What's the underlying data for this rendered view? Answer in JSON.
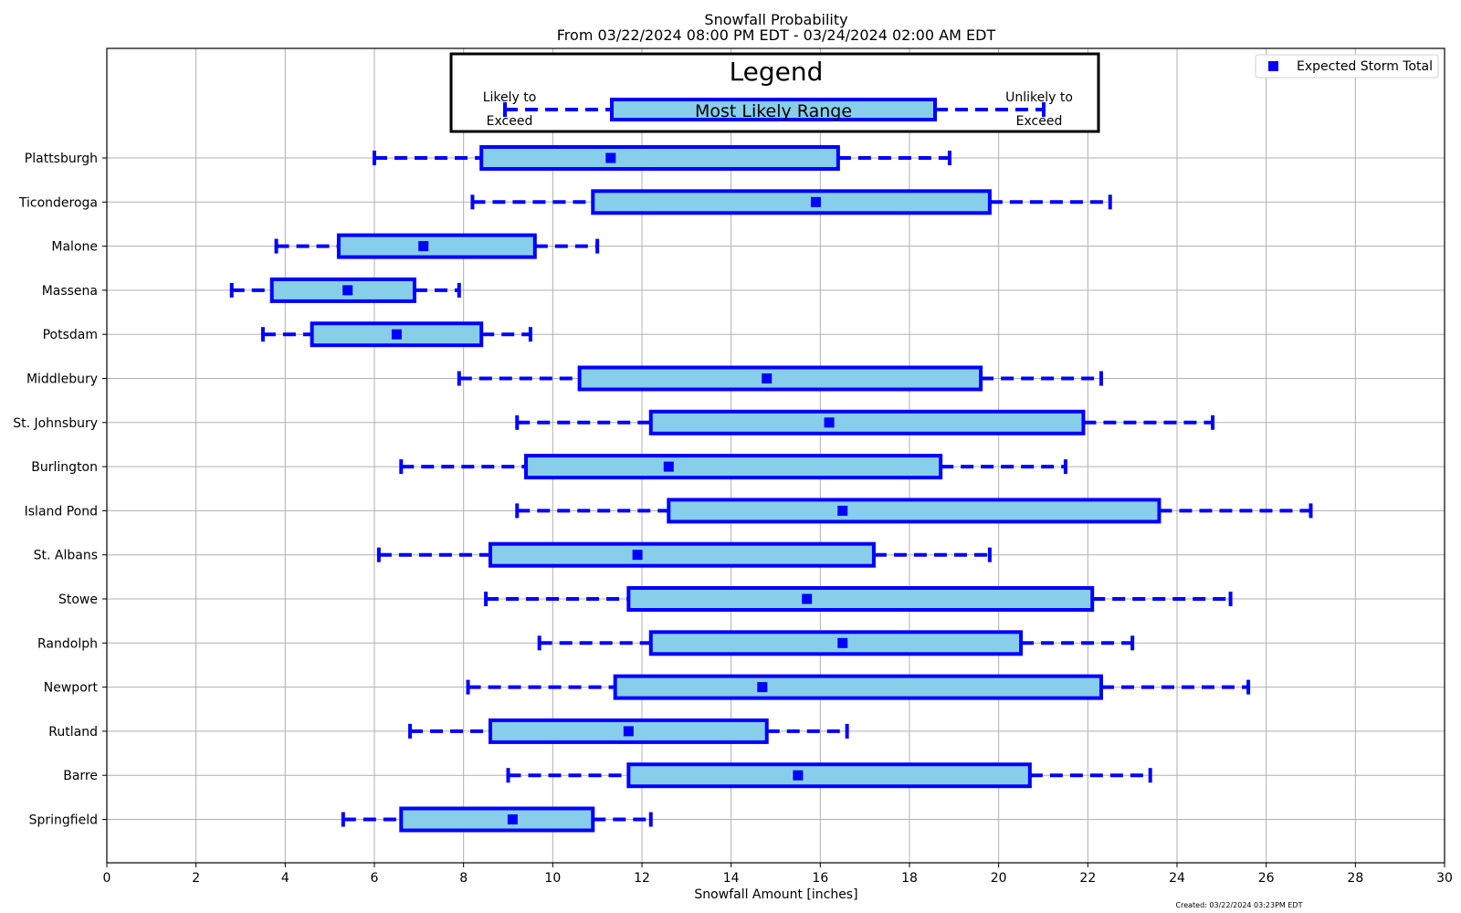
{
  "chart_data": {
    "type": "box",
    "title": "Snowfall Probability",
    "subtitle": "From 03/22/2024 08:00 PM EDT - 03/24/2024 02:00 AM EDT",
    "xlabel": "Snowfall Amount [inches]",
    "xlim": [
      0,
      30
    ],
    "xticks": [
      "0",
      "2",
      "4",
      "6",
      "8",
      "10",
      "12",
      "14",
      "16",
      "18",
      "20",
      "22",
      "24",
      "26",
      "28",
      "30"
    ],
    "grid": true,
    "legend": {
      "position": "top-right",
      "label": "Expected Storm Total"
    },
    "key_box": {
      "title": "Legend",
      "left_label_1": "Likely to",
      "left_label_2": "Exceed",
      "center_label": "Most Likely Range",
      "right_label_1": "Unlikely to",
      "right_label_2": "Exceed"
    },
    "footer": "Created: 03/22/2024 03:23PM EDT",
    "colors": {
      "box_fill": "#87ceeb",
      "stroke": "#0000ff",
      "grid": "#b0b0b0"
    },
    "sites": [
      {
        "name": "Plattsburgh",
        "low": 6.0,
        "q1": 8.4,
        "expected": 11.3,
        "q3": 16.4,
        "high": 18.9
      },
      {
        "name": "Ticonderoga",
        "low": 8.2,
        "q1": 10.9,
        "expected": 15.9,
        "q3": 19.8,
        "high": 22.5
      },
      {
        "name": "Malone",
        "low": 3.8,
        "q1": 5.2,
        "expected": 7.1,
        "q3": 9.6,
        "high": 11.0
      },
      {
        "name": "Massena",
        "low": 2.8,
        "q1": 3.7,
        "expected": 5.4,
        "q3": 6.9,
        "high": 7.9
      },
      {
        "name": "Potsdam",
        "low": 3.5,
        "q1": 4.6,
        "expected": 6.5,
        "q3": 8.4,
        "high": 9.5
      },
      {
        "name": "Middlebury",
        "low": 7.9,
        "q1": 10.6,
        "expected": 14.8,
        "q3": 19.6,
        "high": 22.3
      },
      {
        "name": "St. Johnsbury",
        "low": 9.2,
        "q1": 12.2,
        "expected": 16.2,
        "q3": 21.9,
        "high": 24.8
      },
      {
        "name": "Burlington",
        "low": 6.6,
        "q1": 9.4,
        "expected": 12.6,
        "q3": 18.7,
        "high": 21.5
      },
      {
        "name": "Island Pond",
        "low": 9.2,
        "q1": 12.6,
        "expected": 16.5,
        "q3": 23.6,
        "high": 27.0
      },
      {
        "name": "St. Albans",
        "low": 6.1,
        "q1": 8.6,
        "expected": 11.9,
        "q3": 17.2,
        "high": 19.8
      },
      {
        "name": "Stowe",
        "low": 8.5,
        "q1": 11.7,
        "expected": 15.7,
        "q3": 22.1,
        "high": 25.2
      },
      {
        "name": "Randolph",
        "low": 9.7,
        "q1": 12.2,
        "expected": 16.5,
        "q3": 20.5,
        "high": 23.0
      },
      {
        "name": "Newport",
        "low": 8.1,
        "q1": 11.4,
        "expected": 14.7,
        "q3": 22.3,
        "high": 25.6
      },
      {
        "name": "Rutland",
        "low": 6.8,
        "q1": 8.6,
        "expected": 11.7,
        "q3": 14.8,
        "high": 16.6
      },
      {
        "name": "Barre",
        "low": 9.0,
        "q1": 11.7,
        "expected": 15.5,
        "q3": 20.7,
        "high": 23.4
      },
      {
        "name": "Springfield",
        "low": 5.3,
        "q1": 6.6,
        "expected": 9.1,
        "q3": 10.9,
        "high": 12.2
      }
    ]
  }
}
